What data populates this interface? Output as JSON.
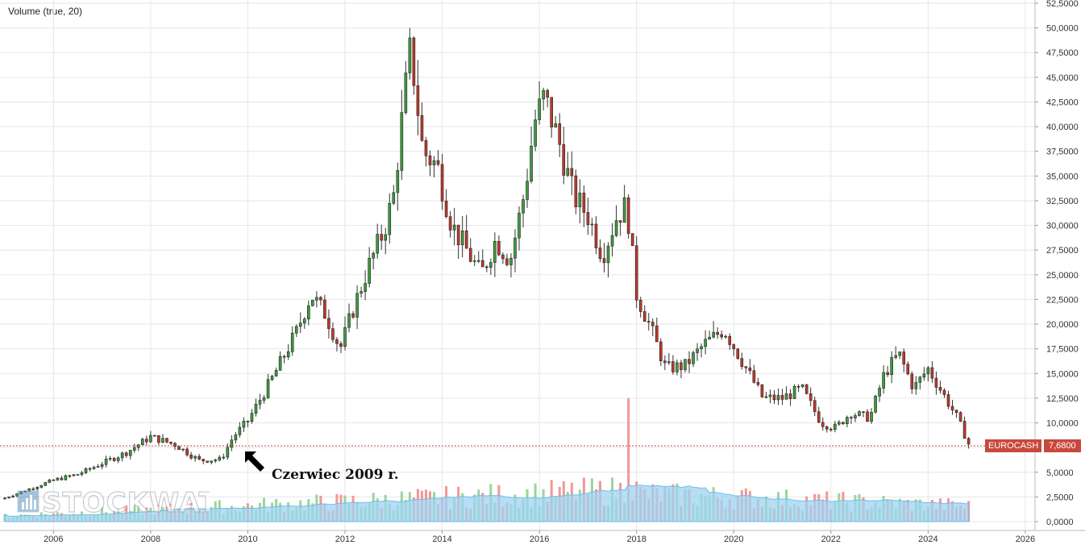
{
  "volume_label": "Volume (true, 20)",
  "ticker": "EUROCASH",
  "last_price": "7,6800",
  "annotation": "Czerwiec 2009 r.",
  "logo": "STOCKWATCH",
  "colors": {
    "up": "#3f9b3f",
    "down": "#c0392b",
    "vol_up": "#8fd18f",
    "vol_down": "#f28c8c",
    "vol_ma": "#7ec8f0",
    "grid": "#e6e6e6",
    "price_line": "#c9483c"
  },
  "chart_data": {
    "type": "candlestick",
    "title": "",
    "xlabel": "",
    "ylabel": "",
    "ylim": [
      0,
      52.5
    ],
    "xlim": [
      2004.9,
      2026.2
    ],
    "y_ticks": [
      "52,5000",
      "50,0000",
      "47,5000",
      "45,0000",
      "42,5000",
      "40,0000",
      "37,5000",
      "35,0000",
      "32,5000",
      "30,0000",
      "27,5000",
      "25,0000",
      "22,5000",
      "20,0000",
      "17,5000",
      "15,0000",
      "12,5000",
      "10,0000",
      "7,5000",
      "5,0000",
      "2,5000",
      "0,0000"
    ],
    "y_tick_values": [
      52.5,
      50,
      47.5,
      45,
      42.5,
      40,
      37.5,
      35,
      32.5,
      30,
      27.5,
      25,
      22.5,
      20,
      17.5,
      15,
      12.5,
      10,
      7.5,
      5,
      2.5,
      0
    ],
    "x_ticks": [
      "2006",
      "2008",
      "2010",
      "2012",
      "2014",
      "2016",
      "2018",
      "2020",
      "2022",
      "2024",
      "2026"
    ],
    "x_tick_values": [
      2006,
      2008,
      2010,
      2012,
      2014,
      2016,
      2018,
      2020,
      2022,
      2024,
      2026
    ],
    "grid": true,
    "series_monthly_close": [
      [
        2005.0,
        2.4
      ],
      [
        2005.5,
        3.3
      ],
      [
        2006.0,
        4.2
      ],
      [
        2006.5,
        4.8
      ],
      [
        2007.0,
        5.9
      ],
      [
        2007.5,
        7.0
      ],
      [
        2008.0,
        8.6
      ],
      [
        2008.5,
        7.8
      ],
      [
        2009.0,
        6.2
      ],
      [
        2009.45,
        6.3
      ],
      [
        2009.7,
        8.6
      ],
      [
        2010.0,
        10.2
      ],
      [
        2010.5,
        14.5
      ],
      [
        2011.0,
        19.2
      ],
      [
        2011.3,
        23.0
      ],
      [
        2011.6,
        21.0
      ],
      [
        2011.9,
        17.5
      ],
      [
        2012.2,
        22.0
      ],
      [
        2012.5,
        26.0
      ],
      [
        2012.8,
        29.5
      ],
      [
        2013.0,
        33.0
      ],
      [
        2013.2,
        42.0
      ],
      [
        2013.35,
        48.0
      ],
      [
        2013.6,
        37.5
      ],
      [
        2013.9,
        36.0
      ],
      [
        2014.2,
        30.0
      ],
      [
        2014.5,
        27.5
      ],
      [
        2014.8,
        25.0
      ],
      [
        2015.1,
        28.5
      ],
      [
        2015.4,
        26.5
      ],
      [
        2015.7,
        33.5
      ],
      [
        2015.9,
        40.5
      ],
      [
        2016.1,
        43.0
      ],
      [
        2016.4,
        38.5
      ],
      [
        2016.7,
        33.0
      ],
      [
        2017.0,
        31.0
      ],
      [
        2017.3,
        27.0
      ],
      [
        2017.6,
        31.0
      ],
      [
        2017.8,
        32.0
      ],
      [
        2018.0,
        23.0
      ],
      [
        2018.3,
        19.5
      ],
      [
        2018.6,
        15.5
      ],
      [
        2019.0,
        15.8
      ],
      [
        2019.4,
        18.0
      ],
      [
        2019.8,
        19.5
      ],
      [
        2020.2,
        16.0
      ],
      [
        2020.6,
        12.5
      ],
      [
        2021.0,
        12.5
      ],
      [
        2021.4,
        13.5
      ],
      [
        2021.8,
        10.0
      ],
      [
        2022.1,
        9.5
      ],
      [
        2022.4,
        11.0
      ],
      [
        2022.8,
        10.5
      ],
      [
        2023.1,
        15.0
      ],
      [
        2023.4,
        17.0
      ],
      [
        2023.7,
        13.5
      ],
      [
        2024.0,
        15.5
      ],
      [
        2024.3,
        13.0
      ],
      [
        2024.6,
        10.5
      ],
      [
        2024.85,
        7.68
      ]
    ],
    "last_value": 7.68,
    "volume_max_label_value": 12.5
  }
}
